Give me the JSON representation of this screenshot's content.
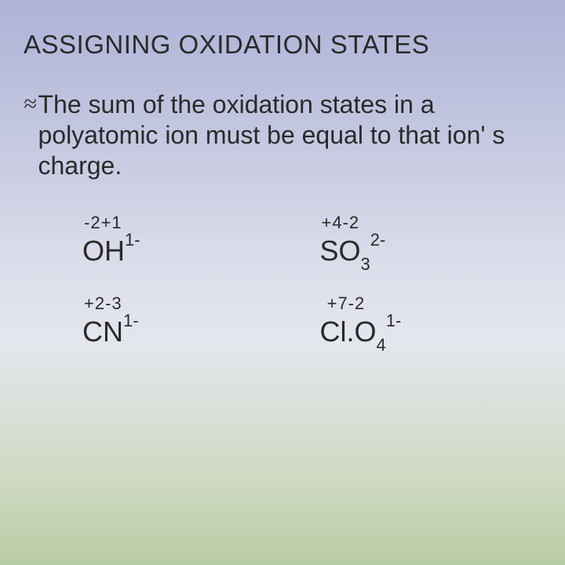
{
  "title": "ASSIGNING OXIDATION STATES",
  "bullet_glyph": "≈",
  "rule": "The sum of the oxidation states in a polyatomic ion must be equal to that ion' s charge.",
  "items": [
    {
      "ox_a": "-2",
      "ox_b": "+1",
      "el_a": "O",
      "el_b": "H",
      "sub_b": "",
      "charge": "1-"
    },
    {
      "ox_a": "+4",
      "ox_b": "-2",
      "el_a": "S",
      "el_b": "O",
      "sub_b": "3",
      "charge": "2-"
    },
    {
      "ox_a": "+2",
      "ox_b": "-3",
      "el_a": "C",
      "el_b": "N",
      "sub_b": "",
      "charge": "1-"
    },
    {
      "ox_a": "+7",
      "ox_b": "-2",
      "el_a": "Cl.",
      "el_b": "O",
      "sub_b": "4",
      "charge": "1-"
    }
  ],
  "colors": {
    "text": "#2a2a2a",
    "bg_top": "#aeb3d8",
    "bg_bottom": "#b8cca3"
  }
}
